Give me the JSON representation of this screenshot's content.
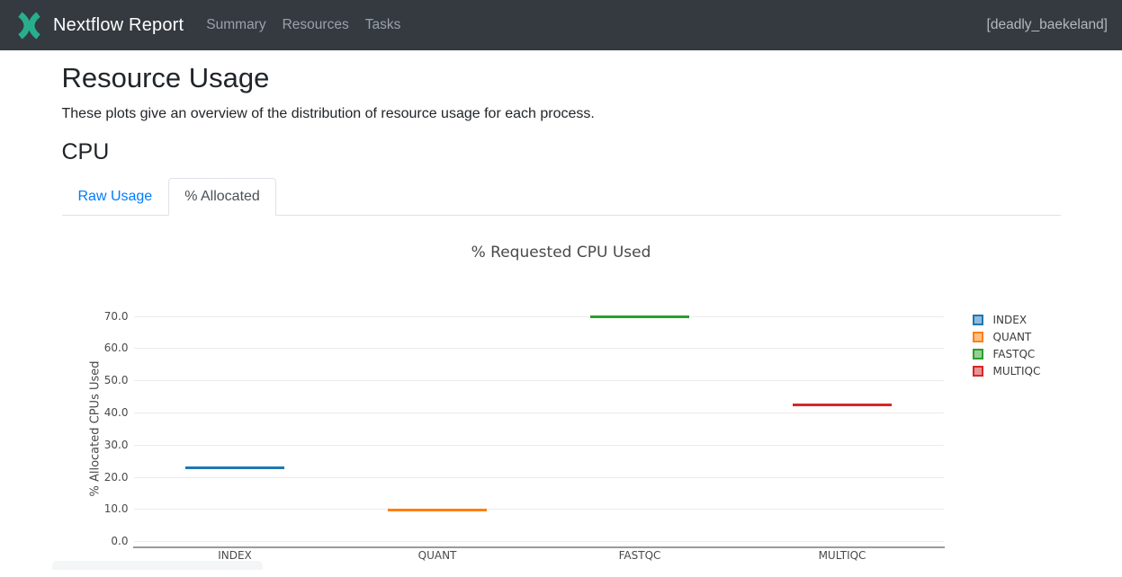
{
  "navbar": {
    "brand": "Nextflow Report",
    "items": [
      {
        "label": "Summary"
      },
      {
        "label": "Resources"
      },
      {
        "label": "Tasks"
      }
    ],
    "run_name": "[deadly_baekeland]"
  },
  "page": {
    "title": "Resource Usage",
    "subtitle": "These plots give an overview of the distribution of resource usage for each process.",
    "section_heading": "CPU"
  },
  "tabs": [
    {
      "label": "Raw Usage",
      "active": false
    },
    {
      "label": "% Allocated",
      "active": true
    }
  ],
  "chart_data": {
    "type": "box",
    "title": "% Requested CPU Used",
    "xlabel": "",
    "ylabel": "% Allocated CPUs Used",
    "categories": [
      "INDEX",
      "QUANT",
      "FASTQC",
      "MULTIQC"
    ],
    "series": [
      {
        "name": "INDEX",
        "color": "#1f77b4",
        "value": 22.8
      },
      {
        "name": "QUANT",
        "color": "#ff7f0e",
        "value": 9.6
      },
      {
        "name": "FASTQC",
        "color": "#2ca02c",
        "value": 69.8
      },
      {
        "name": "MULTIQC",
        "color": "#d62728",
        "value": 42.5
      }
    ],
    "yticks": [
      0,
      10,
      20,
      30,
      40,
      50,
      60,
      70
    ],
    "ytick_labels": [
      "0.0",
      "10.0",
      "20.0",
      "30.0",
      "40.0",
      "50.0",
      "60.0",
      "70.0"
    ],
    "ylim": [
      -2,
      75
    ],
    "grid": true,
    "legend_position": "right"
  },
  "theme": {
    "navbar_bg": "#343a40",
    "logo_teal": "#28ae8e",
    "accent_link": "#007bff",
    "active_tab_text": "#495057",
    "chart_text": "#4a4a4a",
    "grid_line": "#ebebeb",
    "axis_line": "#9b9b9b"
  }
}
